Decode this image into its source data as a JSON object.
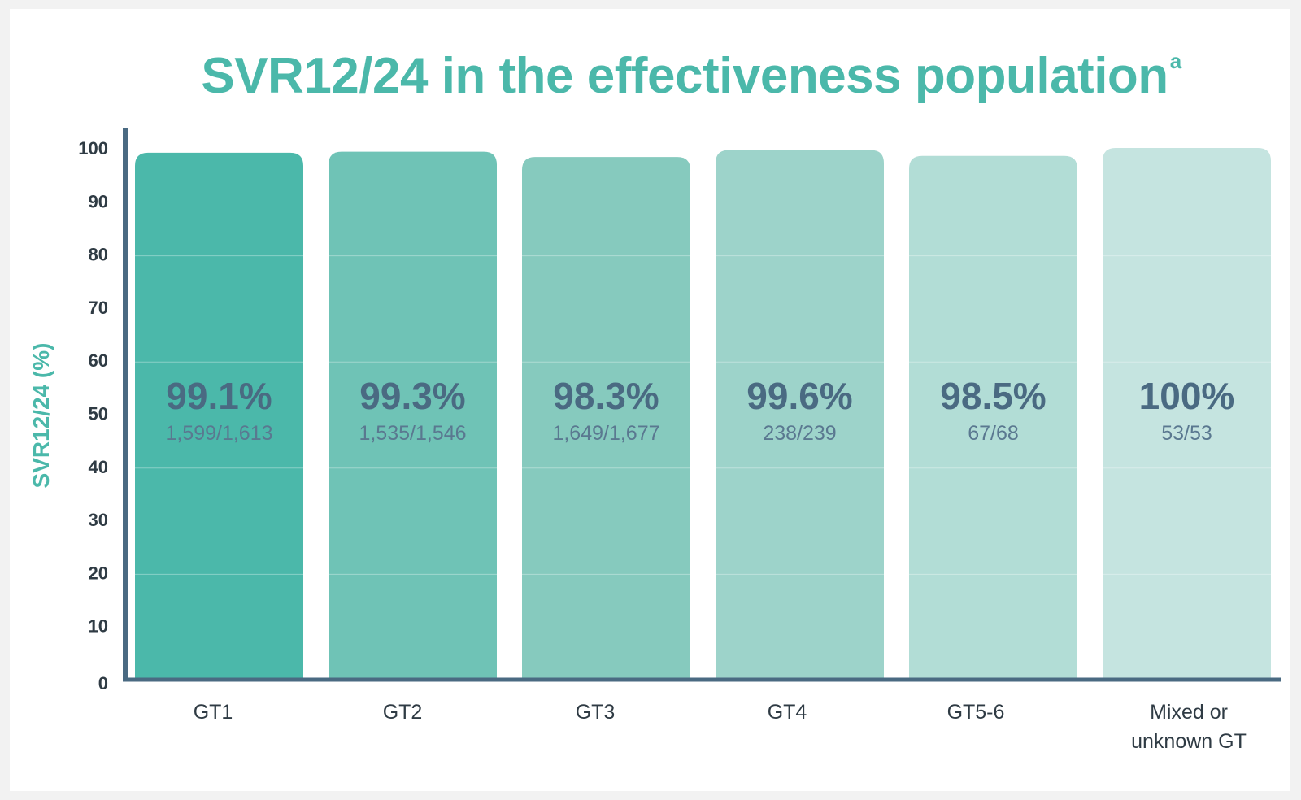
{
  "chart_data": {
    "type": "bar",
    "title": "SVR12/24 in the effectiveness population",
    "title_superscript": "a",
    "ylabel": "SVR12/24 (%)",
    "xlabel": "",
    "ylim": [
      0,
      100
    ],
    "yticks": [
      0,
      10,
      20,
      30,
      40,
      50,
      60,
      70,
      80,
      90,
      100
    ],
    "grid": true,
    "categories": [
      "GT1",
      "GT2",
      "GT3",
      "GT4",
      "GT5-6",
      "Mixed or unknown GT"
    ],
    "values": [
      99.1,
      99.3,
      98.3,
      99.6,
      98.5,
      100
    ],
    "data_labels": [
      "99.1%",
      "99.3%",
      "98.3%",
      "99.6%",
      "98.5%",
      "100%"
    ],
    "fractions": [
      "1,599/1,613",
      "1,535/1,546",
      "1,649/1,677",
      "238/239",
      "67/68",
      "53/53"
    ],
    "bar_colors": [
      "#4bb8aa",
      "#6fc3b6",
      "#86cabe",
      "#9dd3ca",
      "#b2ddd6",
      "#c5e4e0"
    ],
    "axis_color": "#4a6a82"
  }
}
